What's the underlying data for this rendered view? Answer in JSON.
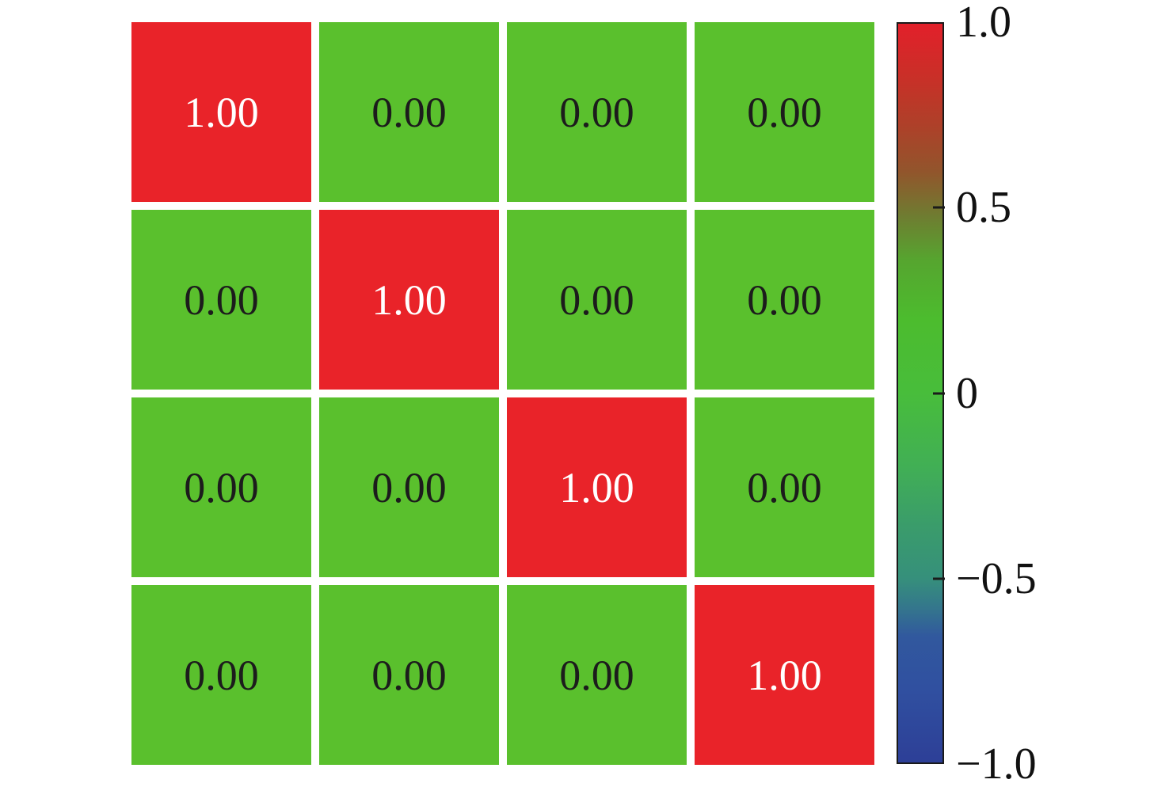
{
  "figure": {
    "background_color": "#ffffff",
    "grid_gap_color": "#ffffff",
    "frame_color": "#1a1a1a"
  },
  "chart_data": {
    "type": "heatmap",
    "title": "",
    "xlabel": "",
    "ylabel": "",
    "rows": 4,
    "cols": 4,
    "x_tick_labels": [],
    "y_tick_labels": [],
    "matrix": [
      [
        1.0,
        0.0,
        0.0,
        0.0
      ],
      [
        0.0,
        1.0,
        0.0,
        0.0
      ],
      [
        0.0,
        0.0,
        1.0,
        0.0
      ],
      [
        0.0,
        0.0,
        0.0,
        1.0
      ]
    ],
    "cell_labels": [
      [
        "1.00",
        "0.00",
        "0.00",
        "0.00"
      ],
      [
        "0.00",
        "1.00",
        "0.00",
        "0.00"
      ],
      [
        "0.00",
        "0.00",
        "1.00",
        "0.00"
      ],
      [
        "0.00",
        "0.00",
        "0.00",
        "1.00"
      ]
    ],
    "cell_colors": {
      "positive_one": "#e92329",
      "zero": "#5ac02d"
    },
    "cell_text_colors": {
      "on_red": "#ffffff",
      "on_green": "#1c1c1c"
    },
    "colorbar": {
      "range": [
        -1.0,
        1.0
      ],
      "tick_labels": [
        "1.0",
        "0.5",
        "0",
        "−0.5",
        "−1.0"
      ],
      "tick_values": [
        1.0,
        0.5,
        0.0,
        -0.5,
        -1.0
      ],
      "orientation": "vertical",
      "position": "right",
      "gradient_stops": [
        {
          "pos": 0.0,
          "color": "#e2202a"
        },
        {
          "pos": 0.07,
          "color": "#ca2f28"
        },
        {
          "pos": 0.14,
          "color": "#ad4129"
        },
        {
          "pos": 0.2,
          "color": "#92552c"
        },
        {
          "pos": 0.26,
          "color": "#6f7c31"
        },
        {
          "pos": 0.32,
          "color": "#56a52f"
        },
        {
          "pos": 0.4,
          "color": "#4cbc2e"
        },
        {
          "pos": 0.5,
          "color": "#48bd3b"
        },
        {
          "pos": 0.6,
          "color": "#41af55"
        },
        {
          "pos": 0.68,
          "color": "#3a9c6b"
        },
        {
          "pos": 0.75,
          "color": "#36907b"
        },
        {
          "pos": 0.79,
          "color": "#34778c"
        },
        {
          "pos": 0.83,
          "color": "#31589e"
        },
        {
          "pos": 0.9,
          "color": "#3050a0"
        },
        {
          "pos": 1.0,
          "color": "#2d3f97"
        }
      ]
    }
  }
}
